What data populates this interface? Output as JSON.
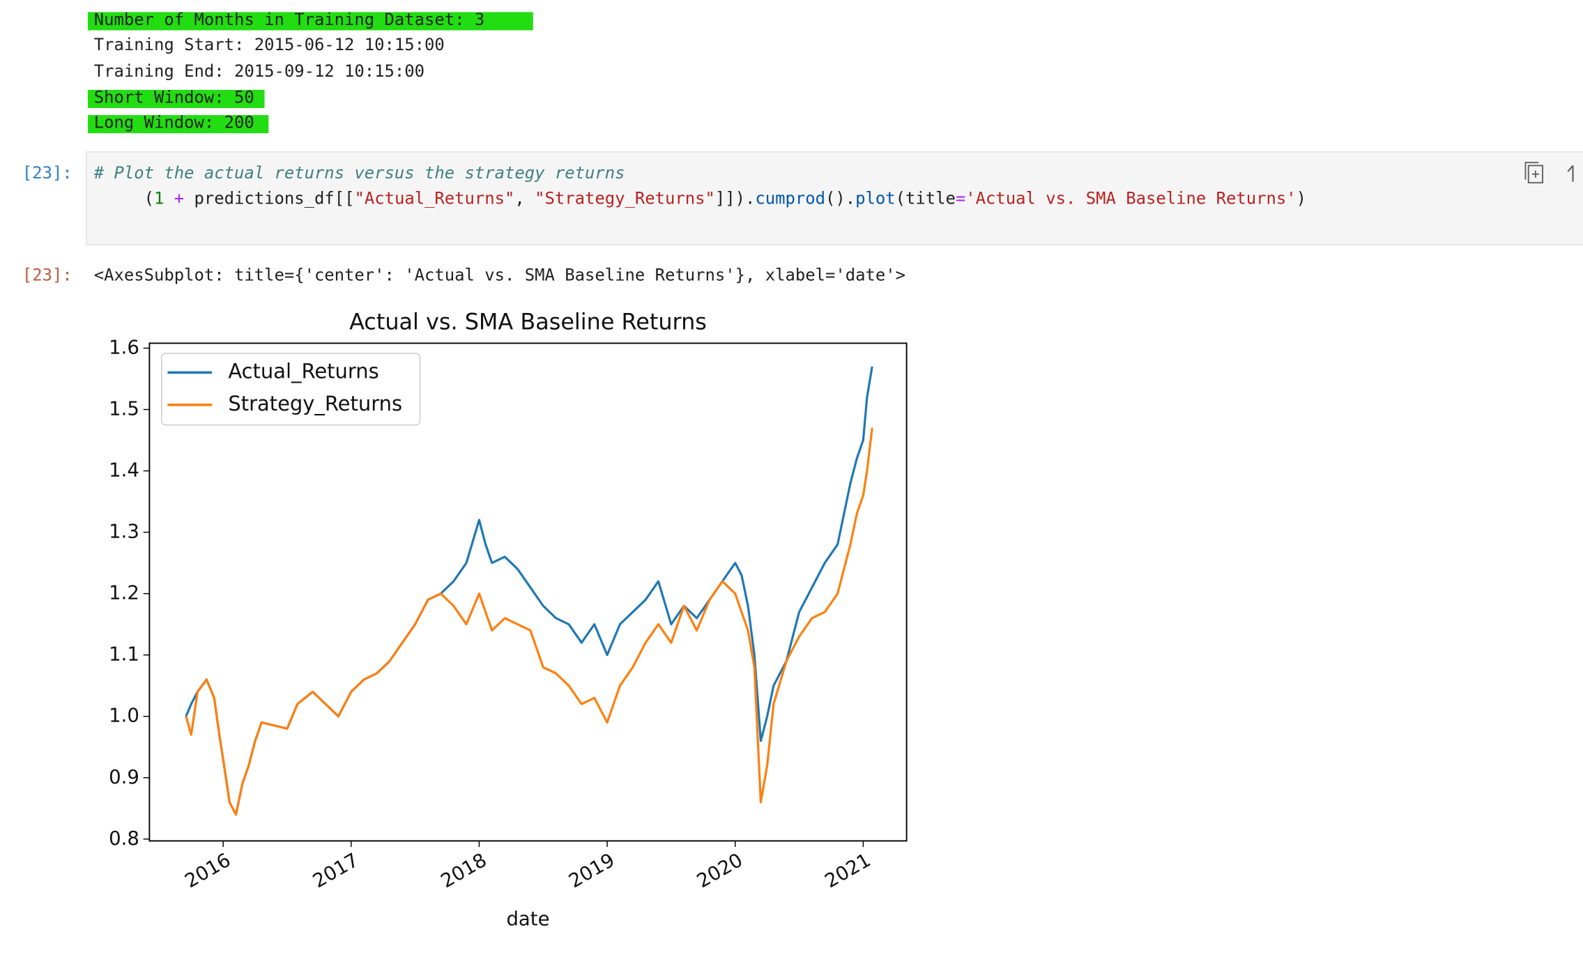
{
  "output_lines": [
    "Number of Months in Training Dataset: 3",
    "Training Start: 2015-06-12 10:15:00",
    "Training End: 2015-09-12 10:15:00",
    "Short Window: 50",
    "Long Window: 200"
  ],
  "input_prompt": "[23]:",
  "code_comment": "# Plot the actual returns versus the strategy returns",
  "code_tokens": [
    "(",
    "1",
    " + ",
    "predictions_df[[",
    "\"Actual_Returns\"",
    ", ",
    "\"Strategy_Returns\"",
    "]]).",
    "cumprod",
    "().",
    "plot",
    "(title",
    "=",
    "'Actual vs. SMA Baseline Returns'",
    ")"
  ],
  "output_prompt": "[23]:",
  "output_repr": "<AxesSubplot: title={'center': 'Actual vs. SMA Baseline Returns'}, xlabel='date'>",
  "chart_data": {
    "type": "line",
    "title": "Actual vs. SMA Baseline Returns",
    "xlabel": "date",
    "x": [
      2015.71,
      2015.75,
      2015.8,
      2015.87,
      2015.93,
      2015.97,
      2016.0,
      2016.05,
      2016.1,
      2016.15,
      2016.2,
      2016.25,
      2016.3,
      2016.5,
      2016.58,
      2016.7,
      2016.8,
      2016.9,
      2017.0,
      2017.1,
      2017.2,
      2017.3,
      2017.4,
      2017.5,
      2017.6,
      2017.7,
      2017.8,
      2017.9,
      2018.0,
      2018.05,
      2018.1,
      2018.2,
      2018.3,
      2018.4,
      2018.5,
      2018.6,
      2018.7,
      2018.8,
      2018.9,
      2019.0,
      2019.1,
      2019.2,
      2019.3,
      2019.4,
      2019.5,
      2019.6,
      2019.7,
      2019.8,
      2019.9,
      2020.0,
      2020.05,
      2020.1,
      2020.15,
      2020.2,
      2020.25,
      2020.3,
      2020.4,
      2020.5,
      2020.6,
      2020.7,
      2020.8,
      2020.9,
      2020.95,
      2021.0,
      2021.03,
      2021.07
    ],
    "series": [
      {
        "name": "Actual_Returns",
        "color": "#1f77b4",
        "values": [
          1.0,
          1.02,
          1.04,
          1.06,
          1.03,
          0.97,
          0.93,
          0.86,
          0.84,
          0.89,
          0.92,
          0.96,
          0.99,
          0.98,
          1.02,
          1.04,
          1.02,
          1.0,
          1.04,
          1.06,
          1.07,
          1.09,
          1.12,
          1.15,
          1.19,
          1.2,
          1.22,
          1.25,
          1.32,
          1.28,
          1.25,
          1.26,
          1.24,
          1.21,
          1.18,
          1.16,
          1.15,
          1.12,
          1.15,
          1.1,
          1.15,
          1.17,
          1.19,
          1.22,
          1.15,
          1.18,
          1.16,
          1.19,
          1.22,
          1.25,
          1.23,
          1.18,
          1.1,
          0.96,
          1.0,
          1.05,
          1.09,
          1.17,
          1.21,
          1.25,
          1.28,
          1.38,
          1.42,
          1.45,
          1.52,
          1.57
        ]
      },
      {
        "name": "Strategy_Returns",
        "color": "#ff7f0e",
        "values": [
          1.0,
          0.97,
          1.04,
          1.06,
          1.03,
          0.97,
          0.93,
          0.86,
          0.84,
          0.89,
          0.92,
          0.96,
          0.99,
          0.98,
          1.02,
          1.04,
          1.02,
          1.0,
          1.04,
          1.06,
          1.07,
          1.09,
          1.12,
          1.15,
          1.19,
          1.2,
          1.18,
          1.15,
          1.2,
          1.17,
          1.14,
          1.16,
          1.15,
          1.14,
          1.08,
          1.07,
          1.05,
          1.02,
          1.03,
          0.99,
          1.05,
          1.08,
          1.12,
          1.15,
          1.12,
          1.18,
          1.14,
          1.19,
          1.22,
          1.2,
          1.17,
          1.14,
          1.08,
          0.86,
          0.92,
          1.02,
          1.09,
          1.13,
          1.16,
          1.17,
          1.2,
          1.28,
          1.33,
          1.36,
          1.4,
          1.47
        ]
      }
    ],
    "xlim": [
      2015.424,
      2021.339
    ],
    "xticks": [
      2016,
      2017,
      2018,
      2019,
      2020,
      2021
    ],
    "ylim": [
      0.797,
      1.608
    ],
    "yticks": [
      0.8,
      0.9,
      {
        "value": 1.0,
        "label": "1.0"
      },
      1.1,
      1.2,
      1.3,
      1.4,
      1.5,
      1.6
    ],
    "legend": "upper left"
  }
}
